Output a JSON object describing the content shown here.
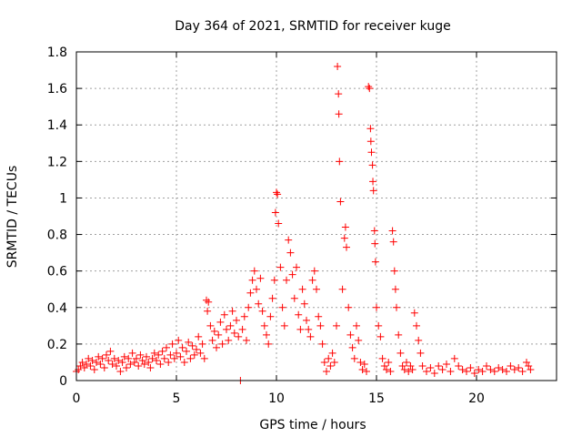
{
  "chart_data": {
    "type": "scatter",
    "title": "Day 364 of 2021, SRMTID for receiver kuge",
    "xlabel": "GPS time / hours",
    "ylabel": "SRMTID / TECUs",
    "xlim": [
      0,
      24
    ],
    "ylim": [
      0,
      1.8
    ],
    "x_ticks": [
      0,
      5,
      10,
      15,
      20
    ],
    "y_ticks": [
      0,
      0.2,
      0.4,
      0.6,
      0.8,
      1,
      1.2,
      1.4,
      1.6,
      1.8
    ],
    "x_tick_labels": [
      "0",
      "5",
      "10",
      "15",
      "20"
    ],
    "y_tick_labels": [
      "0",
      "0.2",
      "0.4",
      "0.6",
      "0.8",
      "1",
      "1.2",
      "1.4",
      "1.6",
      "1.8"
    ],
    "grid": true,
    "marker": "+",
    "color": "#ff0000",
    "series": [
      {
        "name": "SRMTID",
        "points": [
          [
            0.0,
            0.05
          ],
          [
            0.1,
            0.06
          ],
          [
            0.2,
            0.08
          ],
          [
            0.3,
            0.1
          ],
          [
            0.4,
            0.07
          ],
          [
            0.5,
            0.09
          ],
          [
            0.6,
            0.12
          ],
          [
            0.7,
            0.08
          ],
          [
            0.8,
            0.11
          ],
          [
            0.9,
            0.06
          ],
          [
            1.0,
            0.1
          ],
          [
            1.1,
            0.13
          ],
          [
            1.2,
            0.09
          ],
          [
            1.3,
            0.12
          ],
          [
            1.4,
            0.07
          ],
          [
            1.5,
            0.14
          ],
          [
            1.6,
            0.11
          ],
          [
            1.7,
            0.16
          ],
          [
            1.8,
            0.09
          ],
          [
            1.9,
            0.12
          ],
          [
            2.0,
            0.08
          ],
          [
            2.1,
            0.11
          ],
          [
            2.2,
            0.05
          ],
          [
            2.3,
            0.1
          ],
          [
            2.4,
            0.13
          ],
          [
            2.5,
            0.07
          ],
          [
            2.6,
            0.12
          ],
          [
            2.7,
            0.09
          ],
          [
            2.8,
            0.15
          ],
          [
            2.9,
            0.1
          ],
          [
            3.0,
            0.12
          ],
          [
            3.1,
            0.08
          ],
          [
            3.2,
            0.14
          ],
          [
            3.3,
            0.11
          ],
          [
            3.4,
            0.09
          ],
          [
            3.5,
            0.13
          ],
          [
            3.6,
            0.1
          ],
          [
            3.7,
            0.07
          ],
          [
            3.8,
            0.12
          ],
          [
            3.9,
            0.15
          ],
          [
            4.0,
            0.11
          ],
          [
            4.1,
            0.14
          ],
          [
            4.2,
            0.09
          ],
          [
            4.3,
            0.16
          ],
          [
            4.4,
            0.12
          ],
          [
            4.5,
            0.18
          ],
          [
            4.6,
            0.1
          ],
          [
            4.7,
            0.14
          ],
          [
            4.8,
            0.2
          ],
          [
            4.9,
            0.12
          ],
          [
            5.0,
            0.15
          ],
          [
            5.1,
            0.22
          ],
          [
            5.2,
            0.13
          ],
          [
            5.3,
            0.18
          ],
          [
            5.4,
            0.1
          ],
          [
            5.5,
            0.16
          ],
          [
            5.6,
            0.21
          ],
          [
            5.7,
            0.12
          ],
          [
            5.8,
            0.19
          ],
          [
            5.9,
            0.14
          ],
          [
            6.0,
            0.17
          ],
          [
            6.1,
            0.24
          ],
          [
            6.2,
            0.15
          ],
          [
            6.3,
            0.2
          ],
          [
            6.4,
            0.12
          ],
          [
            6.5,
            0.44
          ],
          [
            6.55,
            0.38
          ],
          [
            6.6,
            0.43
          ],
          [
            6.7,
            0.3
          ],
          [
            6.8,
            0.22
          ],
          [
            6.9,
            0.27
          ],
          [
            7.0,
            0.18
          ],
          [
            7.1,
            0.25
          ],
          [
            7.2,
            0.32
          ],
          [
            7.3,
            0.2
          ],
          [
            7.4,
            0.36
          ],
          [
            7.5,
            0.28
          ],
          [
            7.6,
            0.22
          ],
          [
            7.7,
            0.3
          ],
          [
            7.8,
            0.38
          ],
          [
            7.9,
            0.26
          ],
          [
            8.0,
            0.33
          ],
          [
            8.1,
            0.24
          ],
          [
            8.2,
            0.0
          ],
          [
            8.3,
            0.28
          ],
          [
            8.4,
            0.35
          ],
          [
            8.5,
            0.22
          ],
          [
            8.6,
            0.4
          ],
          [
            8.7,
            0.48
          ],
          [
            8.8,
            0.55
          ],
          [
            8.9,
            0.6
          ],
          [
            9.0,
            0.5
          ],
          [
            9.1,
            0.42
          ],
          [
            9.2,
            0.56
          ],
          [
            9.3,
            0.38
          ],
          [
            9.4,
            0.3
          ],
          [
            9.5,
            0.25
          ],
          [
            9.6,
            0.2
          ],
          [
            9.7,
            0.35
          ],
          [
            9.8,
            0.45
          ],
          [
            9.9,
            0.55
          ],
          [
            9.95,
            0.92
          ],
          [
            10.0,
            1.03
          ],
          [
            10.05,
            1.02
          ],
          [
            10.1,
            0.86
          ],
          [
            10.2,
            0.62
          ],
          [
            10.3,
            0.4
          ],
          [
            10.4,
            0.3
          ],
          [
            10.5,
            0.55
          ],
          [
            10.6,
            0.77
          ],
          [
            10.7,
            0.7
          ],
          [
            10.8,
            0.58
          ],
          [
            10.9,
            0.45
          ],
          [
            11.0,
            0.62
          ],
          [
            11.1,
            0.36
          ],
          [
            11.2,
            0.28
          ],
          [
            11.3,
            0.5
          ],
          [
            11.4,
            0.42
          ],
          [
            11.5,
            0.33
          ],
          [
            11.6,
            0.28
          ],
          [
            11.7,
            0.24
          ],
          [
            11.8,
            0.55
          ],
          [
            11.9,
            0.6
          ],
          [
            12.0,
            0.5
          ],
          [
            12.1,
            0.35
          ],
          [
            12.2,
            0.3
          ],
          [
            12.3,
            0.2
          ],
          [
            12.4,
            0.1
          ],
          [
            12.5,
            0.05
          ],
          [
            12.6,
            0.12
          ],
          [
            12.7,
            0.08
          ],
          [
            12.8,
            0.15
          ],
          [
            12.9,
            0.1
          ],
          [
            13.0,
            0.3
          ],
          [
            13.05,
            1.72
          ],
          [
            13.1,
            1.57
          ],
          [
            13.12,
            1.46
          ],
          [
            13.15,
            1.2
          ],
          [
            13.2,
            0.98
          ],
          [
            13.3,
            0.5
          ],
          [
            13.4,
            0.78
          ],
          [
            13.45,
            0.84
          ],
          [
            13.5,
            0.73
          ],
          [
            13.6,
            0.4
          ],
          [
            13.7,
            0.25
          ],
          [
            13.8,
            0.18
          ],
          [
            13.9,
            0.12
          ],
          [
            14.0,
            0.3
          ],
          [
            14.1,
            0.22
          ],
          [
            14.2,
            0.1
          ],
          [
            14.3,
            0.06
          ],
          [
            14.4,
            0.09
          ],
          [
            14.5,
            0.05
          ],
          [
            14.6,
            1.61
          ],
          [
            14.65,
            1.6
          ],
          [
            14.7,
            1.38
          ],
          [
            14.72,
            1.31
          ],
          [
            14.75,
            1.25
          ],
          [
            14.8,
            1.18
          ],
          [
            14.82,
            1.09
          ],
          [
            14.85,
            1.04
          ],
          [
            14.9,
            0.82
          ],
          [
            14.92,
            0.75
          ],
          [
            14.95,
            0.65
          ],
          [
            15.0,
            0.4
          ],
          [
            15.1,
            0.3
          ],
          [
            15.2,
            0.24
          ],
          [
            15.3,
            0.12
          ],
          [
            15.4,
            0.08
          ],
          [
            15.5,
            0.06
          ],
          [
            15.6,
            0.1
          ],
          [
            15.7,
            0.05
          ],
          [
            15.8,
            0.82
          ],
          [
            15.85,
            0.76
          ],
          [
            15.9,
            0.6
          ],
          [
            15.95,
            0.5
          ],
          [
            16.0,
            0.4
          ],
          [
            16.1,
            0.25
          ],
          [
            16.2,
            0.15
          ],
          [
            16.3,
            0.08
          ],
          [
            16.4,
            0.06
          ],
          [
            16.5,
            0.1
          ],
          [
            16.6,
            0.05
          ],
          [
            16.7,
            0.08
          ],
          [
            16.8,
            0.06
          ],
          [
            16.9,
            0.37
          ],
          [
            17.0,
            0.3
          ],
          [
            17.1,
            0.22
          ],
          [
            17.2,
            0.15
          ],
          [
            17.3,
            0.08
          ],
          [
            17.5,
            0.05
          ],
          [
            17.7,
            0.07
          ],
          [
            17.9,
            0.04
          ],
          [
            18.1,
            0.08
          ],
          [
            18.3,
            0.06
          ],
          [
            18.5,
            0.09
          ],
          [
            18.7,
            0.05
          ],
          [
            18.9,
            0.12
          ],
          [
            19.1,
            0.08
          ],
          [
            19.3,
            0.06
          ],
          [
            19.5,
            0.05
          ],
          [
            19.7,
            0.07
          ],
          [
            19.9,
            0.04
          ],
          [
            20.1,
            0.06
          ],
          [
            20.3,
            0.05
          ],
          [
            20.5,
            0.08
          ],
          [
            20.7,
            0.06
          ],
          [
            20.9,
            0.05
          ],
          [
            21.1,
            0.07
          ],
          [
            21.3,
            0.06
          ],
          [
            21.5,
            0.05
          ],
          [
            21.7,
            0.08
          ],
          [
            21.9,
            0.06
          ],
          [
            22.1,
            0.07
          ],
          [
            22.3,
            0.05
          ],
          [
            22.5,
            0.1
          ],
          [
            22.6,
            0.08
          ],
          [
            22.7,
            0.06
          ]
        ]
      }
    ]
  }
}
